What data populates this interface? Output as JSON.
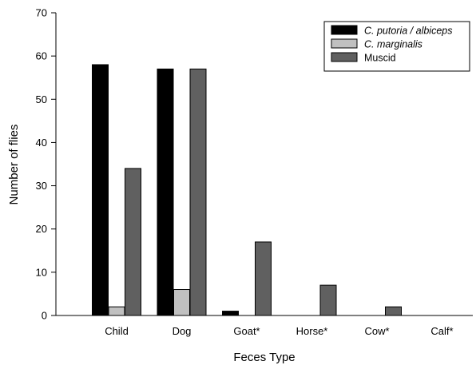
{
  "chart_data": {
    "type": "bar",
    "title": "",
    "xlabel": "Feces Type",
    "ylabel": "Number of flies",
    "categories": [
      "Child",
      "Dog",
      "Goat*",
      "Horse*",
      "Cow*",
      "Calf*"
    ],
    "ylim": [
      0,
      70
    ],
    "yticks": [
      0,
      10,
      20,
      30,
      40,
      50,
      60,
      70
    ],
    "grid": false,
    "legend_position": "top-right",
    "series": [
      {
        "name": "C. putoria / albiceps",
        "italic": true,
        "color": "#000000",
        "values": [
          58,
          57,
          1,
          0,
          0,
          0
        ]
      },
      {
        "name": "C. marginalis",
        "italic": true,
        "color": "#c0c0c0",
        "values": [
          2,
          6,
          0,
          0,
          0,
          0
        ]
      },
      {
        "name": "Muscid",
        "italic": false,
        "color": "#606060",
        "values": [
          34,
          57,
          17,
          7,
          2,
          0
        ]
      }
    ]
  }
}
